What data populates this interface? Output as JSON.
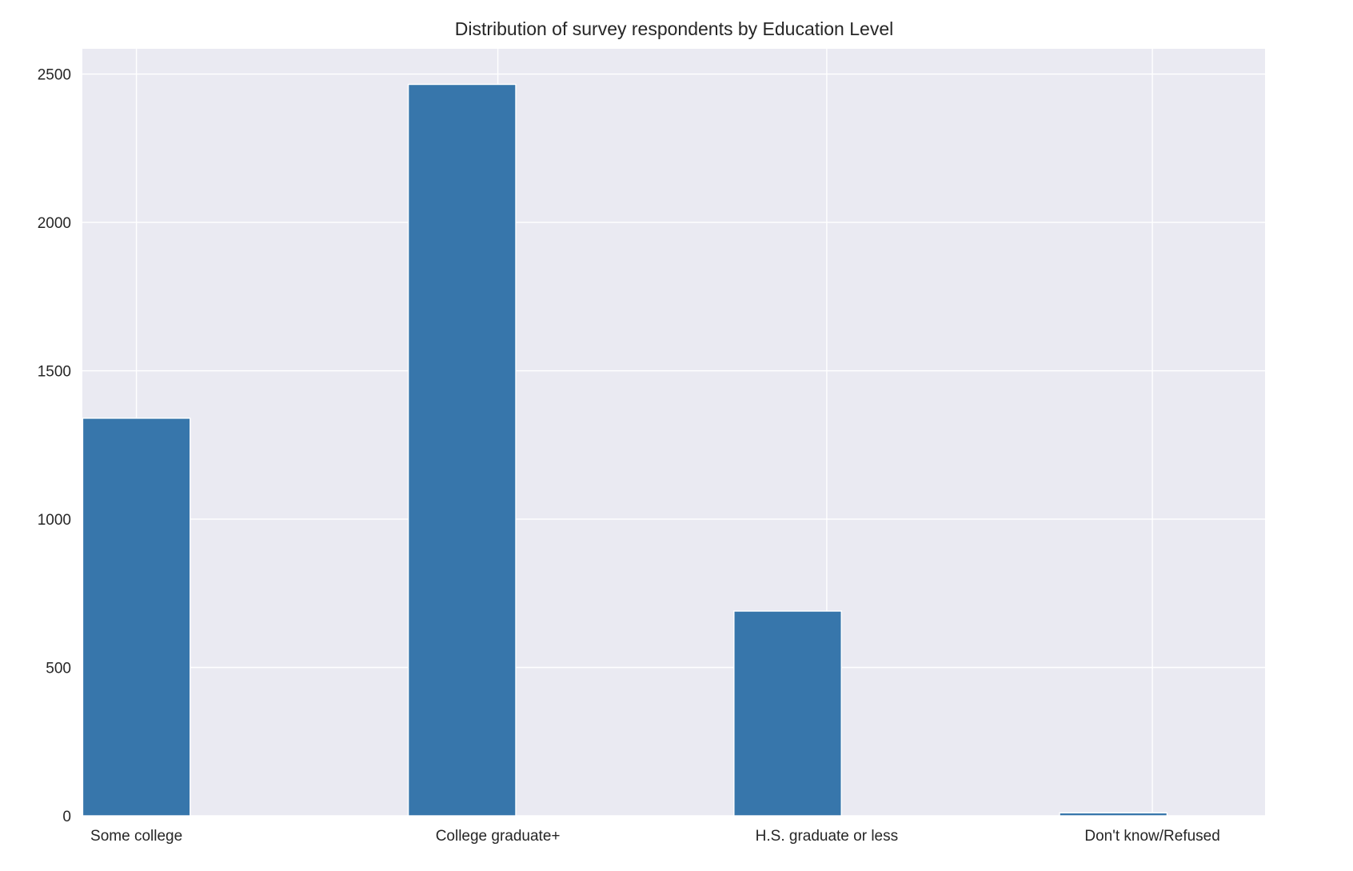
{
  "chart_data": {
    "type": "bar",
    "title": "Distribution of survey respondents by Education Level",
    "xlabel": "",
    "ylabel": "",
    "categories": [
      "Some college",
      "College graduate+",
      "H.S. graduate or less",
      "Don't know/Refused"
    ],
    "values": [
      1340,
      2465,
      690,
      10
    ],
    "ylim": [
      0,
      2585
    ],
    "y_ticks": [
      0,
      500,
      1000,
      1500,
      2000,
      2500
    ],
    "y_tick_labels": [
      "0",
      "500",
      "1000",
      "1500",
      "2000",
      "2500"
    ],
    "grid": true,
    "legend": "none",
    "colors": {
      "bar": "#3776ab",
      "plot_background": "#eaeaf2",
      "grid": "#ffffff",
      "text": "#262626"
    }
  }
}
